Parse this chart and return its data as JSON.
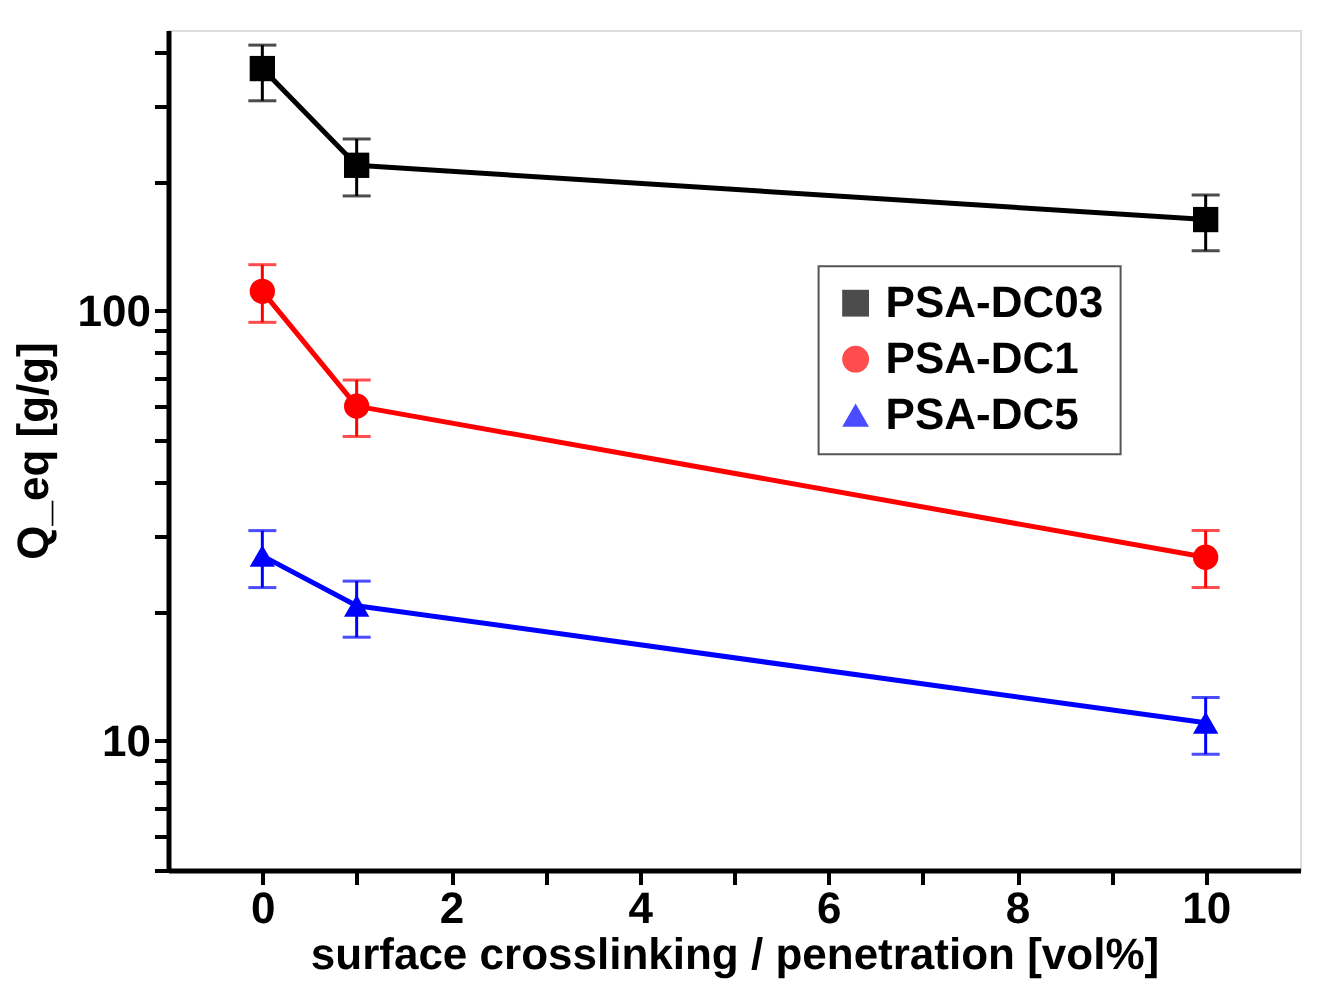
{
  "chart_data": {
    "type": "line",
    "xlabel": "surface crosslinking / penetration [vol%]",
    "ylabel": "Q_eq [g/g]",
    "x": [
      0,
      1,
      10
    ],
    "series": [
      {
        "name": "PSA-DC03",
        "color": "#000000",
        "marker": "square",
        "values": [
          366,
          218,
          163
        ],
        "errors": [
          [
            308,
            415
          ],
          [
            185,
            251
          ],
          [
            138,
            186
          ]
        ]
      },
      {
        "name": "PSA-DC1",
        "color": "#ff0000",
        "marker": "circle",
        "values": [
          111,
          60,
          26.7
        ],
        "errors": [
          [
            94,
            128
          ],
          [
            51,
            69
          ],
          [
            22.7,
            30.8
          ]
        ]
      },
      {
        "name": "PSA-DC5",
        "color": "#0000ff",
        "marker": "triangle",
        "values": [
          26.9,
          20.6,
          11.0
        ],
        "errors": [
          [
            22.7,
            30.8
          ],
          [
            17.4,
            23.5
          ],
          [
            9.3,
            12.6
          ]
        ]
      }
    ],
    "log": "y",
    "xlim": [
      -1,
      11
    ],
    "xticks": [
      0,
      2,
      4,
      6,
      8,
      10,
      {
        "value": 1,
        "label": null
      },
      {
        "value": 3,
        "label": null
      },
      {
        "value": 5,
        "label": null
      },
      {
        "value": 7,
        "label": null
      },
      {
        "value": 9,
        "label": null
      }
    ],
    "ylim": [
      5,
      450
    ],
    "yticks": [
      10,
      100,
      {
        "value": 5,
        "label": null
      },
      {
        "value": 6,
        "label": null
      },
      {
        "value": 7,
        "label": null
      },
      {
        "value": 8,
        "label": null
      },
      {
        "value": 9,
        "label": null
      },
      {
        "value": 20,
        "label": null
      },
      {
        "value": 30,
        "label": null
      },
      {
        "value": 40,
        "label": null
      },
      {
        "value": 50,
        "label": null
      },
      {
        "value": 60,
        "label": null
      },
      {
        "value": 70,
        "label": null
      },
      {
        "value": 80,
        "label": null
      },
      {
        "value": 90,
        "label": null
      },
      {
        "value": 200,
        "label": null
      },
      {
        "value": 300,
        "label": null
      },
      {
        "value": 400,
        "label": null
      }
    ],
    "grid": false,
    "legend": "top right",
    "line_style": "solid"
  }
}
